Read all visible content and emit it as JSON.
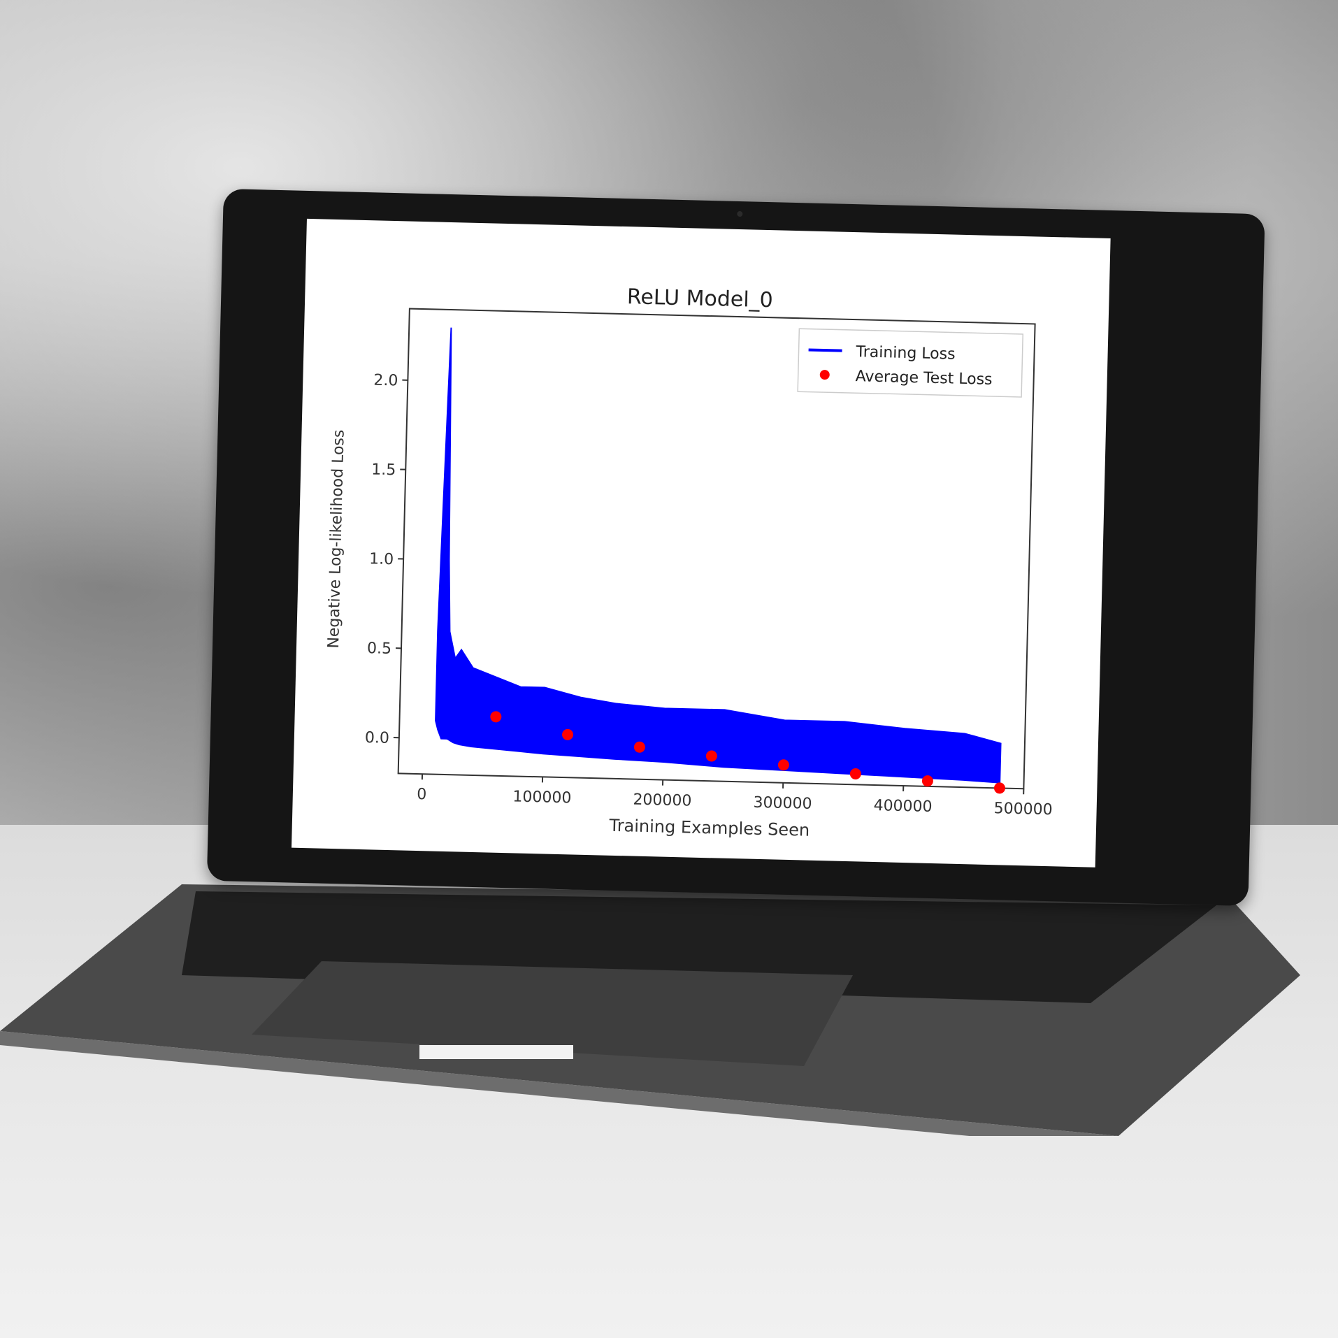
{
  "chart_data": {
    "type": "line",
    "title": "ReLU Model_0",
    "xlabel": "Training Examples Seen",
    "ylabel": "Negative Log-likelihood Loss",
    "xlim": [
      -20000,
      500000
    ],
    "ylim": [
      -0.2,
      2.4
    ],
    "xticks": [
      0,
      100000,
      200000,
      300000,
      400000,
      500000
    ],
    "yticks": [
      0.0,
      0.5,
      1.0,
      1.5,
      2.0
    ],
    "xtick_labels": [
      "0",
      "100000",
      "200000",
      "300000",
      "400000",
      "500000"
    ],
    "ytick_labels": [
      "0.0",
      "0.5",
      "1.0",
      "1.5",
      "2.0"
    ],
    "legend_position": "top-right",
    "grid": false,
    "series": [
      {
        "name": "Training Loss",
        "kind": "line",
        "color": "#0000ff",
        "x": [
          10000,
          12000,
          15000,
          18000,
          20000,
          25000,
          30000,
          40000,
          60000,
          80000,
          100000,
          130000,
          160000,
          200000,
          250000,
          300000,
          350000,
          400000,
          450000,
          480000
        ],
        "y_upper": [
          0.6,
          1.3,
          2.3,
          1.0,
          0.6,
          0.45,
          0.5,
          0.4,
          0.35,
          0.3,
          0.3,
          0.25,
          0.22,
          0.2,
          0.2,
          0.15,
          0.15,
          0.12,
          0.1,
          0.05
        ],
        "y_lower": [
          0.1,
          0.05,
          0.0,
          0.0,
          0.0,
          -0.02,
          -0.03,
          -0.04,
          -0.05,
          -0.06,
          -0.07,
          -0.08,
          -0.09,
          -0.1,
          -0.12,
          -0.13,
          -0.14,
          -0.15,
          -0.16,
          -0.17
        ]
      },
      {
        "name": "Average Test Loss",
        "kind": "scatter",
        "color": "#ff0000",
        "x": [
          60000,
          120000,
          180000,
          240000,
          300000,
          360000,
          420000,
          480000
        ],
        "y": [
          0.13,
          0.04,
          -0.02,
          -0.06,
          -0.1,
          -0.14,
          -0.17,
          -0.2
        ]
      }
    ]
  },
  "colors": {
    "screen_bezel": "#151515",
    "display_bg": "#ffffff",
    "training_line": "#0000ff",
    "test_points": "#ff0000"
  }
}
